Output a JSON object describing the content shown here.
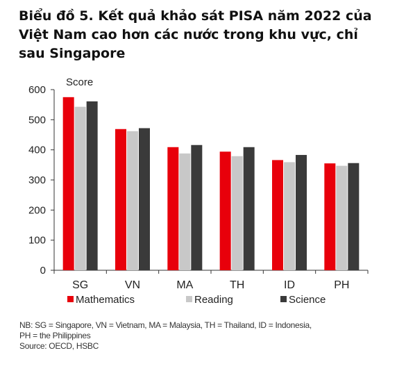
{
  "title": "Biểu đồ 5. Kết quả khảo sát PISA năm 2022 của Việt Nam cao hơn các nước trong khu vực, chỉ sau Singapore",
  "chart_data": {
    "type": "bar",
    "ylabel": "Score",
    "ylim": [
      0,
      600
    ],
    "yticks": [
      0,
      100,
      200,
      300,
      400,
      500,
      600
    ],
    "categories": [
      "SG",
      "VN",
      "MA",
      "TH",
      "ID",
      "PH"
    ],
    "series": [
      {
        "name": "Mathematics",
        "color": "#e8000b",
        "values": [
          575,
          469,
          409,
          394,
          366,
          355
        ]
      },
      {
        "name": "Reading",
        "color": "#c8c8c8",
        "values": [
          543,
          462,
          388,
          379,
          359,
          347
        ]
      },
      {
        "name": "Science",
        "color": "#3a3a3a",
        "values": [
          561,
          472,
          416,
          409,
          383,
          356
        ]
      }
    ],
    "legend_position": "bottom",
    "grid": false
  },
  "notes": {
    "line1": "NB: SG = Singapore, VN = Vietnam, MA = Malaysia, TH = Thailand, ID = Indonesia,",
    "line2": "PH = the Philippines",
    "source": "Source: OECD, HSBC"
  }
}
